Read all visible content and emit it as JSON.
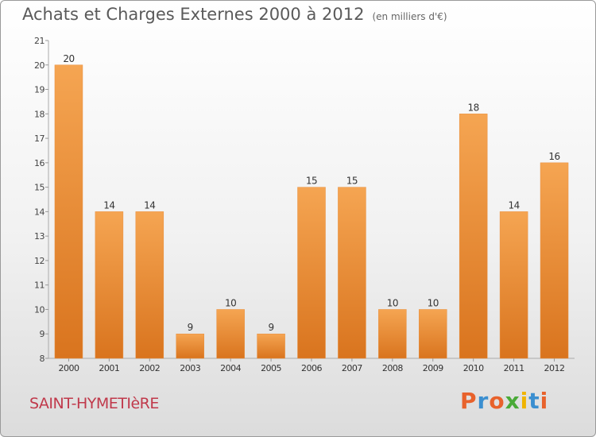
{
  "header": {
    "title": "Achats et Charges Externes 2000 à 2012",
    "unit": "(en milliers d'€)"
  },
  "footer": {
    "commune": "SAINT-HYMETIèRE",
    "logo_text": "Proxiti",
    "logo_colors": [
      "#e8622c",
      "#3b8fd0",
      "#e8622c",
      "#4aaa38",
      "#f0b400",
      "#3b8fd0",
      "#e8622c"
    ]
  },
  "chart_data": {
    "type": "bar",
    "title": "Achats et Charges Externes 2000 à 2012",
    "subtitle": "(en milliers d'€)",
    "categories": [
      "2000",
      "2001",
      "2002",
      "2003",
      "2004",
      "2005",
      "2006",
      "2007",
      "2008",
      "2009",
      "2010",
      "2011",
      "2012"
    ],
    "values": [
      20,
      14,
      14,
      9,
      10,
      9,
      15,
      15,
      10,
      10,
      18,
      14,
      16
    ],
    "ylim": [
      8,
      21
    ],
    "yticks": [
      8,
      9,
      10,
      11,
      12,
      13,
      14,
      15,
      16,
      17,
      18,
      19,
      20,
      21
    ],
    "grid": false,
    "bar_color_top": "#f5a552",
    "bar_color_bottom": "#d9741e"
  }
}
